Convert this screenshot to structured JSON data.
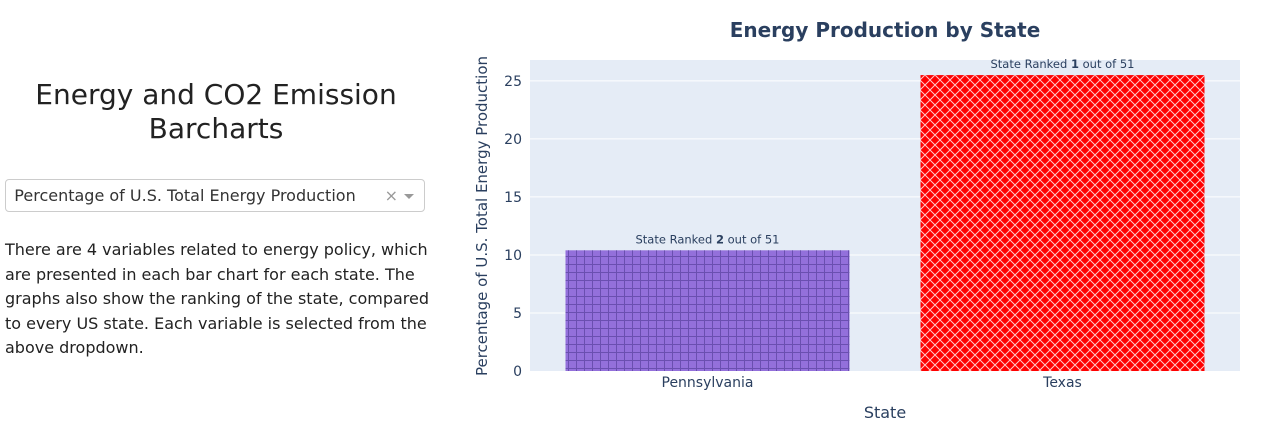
{
  "page": {
    "title": "Energy and CO2 Emission Barcharts",
    "dropdown": {
      "selected": "Percentage of U.S. Total Energy Production",
      "clear_symbol": "×"
    },
    "description": "There are 4 variables related to energy policy, which are presented in each bar chart for each state. The graphs also show the ranking of the state, compared to every US state. Each variable is selected from the above dropdown."
  },
  "chart_data": {
    "type": "bar",
    "title": "Energy Production by State",
    "xlabel": "State",
    "ylabel": "Percentage of U.S. Total Energy Production",
    "categories": [
      "Pennsylvania",
      "Texas"
    ],
    "values": [
      10.4,
      25.5
    ],
    "ylim": [
      0,
      26.8
    ],
    "yticks": [
      0,
      5,
      10,
      15,
      20,
      25
    ],
    "bar_colors": [
      "#9370db",
      "#ff0000"
    ],
    "bar_patterns": [
      "grid",
      "crosshatch"
    ],
    "annotations": [
      {
        "prefix": "State Ranked ",
        "rank": "2",
        "suffix": " out of 51"
      },
      {
        "prefix": "State Ranked ",
        "rank": "1",
        "suffix": " out of 51"
      }
    ],
    "grid": true,
    "plot_background": "#e5ecf6"
  }
}
